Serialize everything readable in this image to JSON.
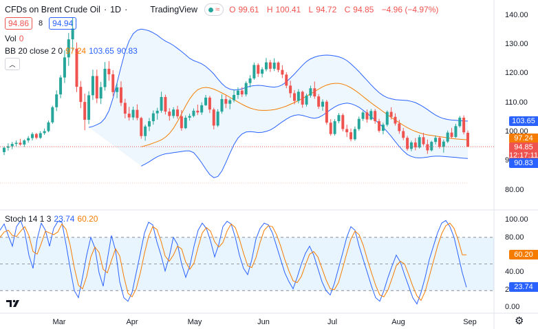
{
  "header": {
    "title": "CFDs on Brent Crude Oil",
    "interval": "1D",
    "brand": "TradingView",
    "ohlc": {
      "o_label": "O",
      "o": "99.61",
      "h_label": "H",
      "h": "100.41",
      "l_label": "L",
      "l": "94.72",
      "c_label": "C",
      "c": "94.85",
      "change": "−4.96 (−4.97%)"
    }
  },
  "trade": {
    "sell": "94.86",
    "spread": "8",
    "buy": "94.94"
  },
  "indicators": {
    "vol": {
      "label": "Vol",
      "value": "0"
    },
    "bb": {
      "label": "BB 20 close 2 0",
      "basis": "97.24",
      "upper": "103.65",
      "lower": "90.83"
    },
    "stoch": {
      "label": "Stoch 14 1 3",
      "k": "23.74",
      "d": "60.20"
    }
  },
  "price_axis": {
    "ticks": [
      "140.00",
      "130.00",
      "120.00",
      "110.00",
      "100.00",
      "90.00",
      "80.00"
    ],
    "labels": {
      "upper": "103.65",
      "basis": "97.24",
      "last": "94.85",
      "countdown": "12:17:11",
      "lower": "90.83"
    }
  },
  "stoch_axis": {
    "ticks": [
      "100.00",
      "80.00",
      "40.00",
      "20.00",
      "0.00"
    ],
    "labels": {
      "d": "60.20",
      "k": "23.74"
    }
  },
  "time_axis": [
    "Mar",
    "Apr",
    "May",
    "Jun",
    "Jul",
    "Aug",
    "Sep"
  ],
  "colors": {
    "up": "#26a69a",
    "down": "#ef5350",
    "bb_band": "#2962ff",
    "bb_basis": "#f57c00",
    "stoch_k": "#2962ff",
    "stoch_d": "#f57c00",
    "grid": "#f0f3fa"
  },
  "chart_data": {
    "type": "candlestick",
    "candles": [
      [
        93,
        95,
        92,
        94.5
      ],
      [
        94.5,
        96,
        93.5,
        95
      ],
      [
        95,
        96.5,
        94,
        95.8
      ],
      [
        95.8,
        97,
        95,
        96.2
      ],
      [
        96.2,
        97.5,
        95.2,
        95.6
      ],
      [
        95.6,
        97.4,
        94.8,
        97
      ],
      [
        97,
        98.5,
        96.2,
        97.8
      ],
      [
        97.8,
        99.8,
        97,
        99.2
      ],
      [
        99.2,
        99.6,
        97.4,
        97.9
      ],
      [
        97.9,
        100.2,
        97.5,
        99.5
      ],
      [
        99.5,
        101.1,
        98.9,
        100.2
      ],
      [
        100.2,
        103.8,
        99.8,
        103.2
      ],
      [
        103.2,
        108.9,
        102.7,
        108.4
      ],
      [
        108.4,
        114.2,
        107.1,
        112.8
      ],
      [
        112.8,
        119.4,
        111.5,
        118.6
      ],
      [
        118.6,
        127.9,
        116.7,
        125.5
      ],
      [
        125.5,
        133.9,
        122.6,
        131.7
      ],
      [
        131.7,
        139.1,
        127.7,
        135.4
      ],
      [
        128.5,
        130.6,
        113.6,
        115.4
      ],
      [
        115.4,
        117.4,
        108.1,
        110.2
      ],
      [
        110.2,
        113.1,
        100.5,
        104.1
      ],
      [
        104.1,
        113.9,
        102.6,
        112.5
      ],
      [
        112.5,
        121.3,
        110.9,
        119.1
      ],
      [
        119.1,
        121.3,
        109.8,
        111.4
      ],
      [
        111.4,
        117.1,
        109.5,
        115.3
      ],
      [
        115.3,
        123.9,
        114.1,
        121.6
      ],
      [
        121.6,
        124.2,
        117.5,
        119.7
      ],
      [
        119.7,
        121.1,
        112.2,
        113.6
      ],
      [
        113.6,
        116.7,
        111.5,
        115.2
      ],
      [
        115.2,
        117.3,
        108.8,
        109.9
      ],
      [
        109.9,
        111.3,
        104.6,
        106.2
      ],
      [
        106.2,
        108.5,
        103.8,
        104.9
      ],
      [
        104.9,
        108.6,
        104.0,
        107.5
      ],
      [
        107.5,
        109.4,
        103.9,
        104.7
      ],
      [
        104.7,
        105.1,
        97.6,
        98.5
      ],
      [
        98.5,
        102.4,
        96.9,
        101.8
      ],
      [
        101.8,
        104.7,
        100.2,
        103.6
      ],
      [
        103.6,
        107.3,
        102.4,
        106.3
      ],
      [
        106.3,
        108.2,
        104.1,
        107.2
      ],
      [
        107.2,
        113.7,
        106.5,
        111.9
      ],
      [
        111.9,
        112.7,
        105.9,
        106.9
      ],
      [
        106.9,
        108.1,
        103.8,
        105.4
      ],
      [
        105.4,
        108.4,
        104.6,
        107.6
      ],
      [
        107.6,
        108.9,
        104.4,
        105.3
      ],
      [
        105.3,
        107.4,
        100.3,
        101.2
      ],
      [
        101.2,
        105.6,
        100.9,
        104.8
      ],
      [
        104.8,
        106.2,
        103.8,
        105.4
      ],
      [
        105.4,
        108.0,
        104.9,
        107.2
      ],
      [
        107.2,
        109.3,
        105.7,
        106.6
      ],
      [
        106.6,
        110.1,
        105.8,
        109.1
      ],
      [
        109.1,
        112.6,
        108.8,
        111.7
      ],
      [
        111.7,
        112.3,
        106.4,
        107.6
      ],
      [
        107.6,
        108.2,
        100.8,
        102.1
      ],
      [
        102.1,
        107.7,
        101.6,
        106.9
      ],
      [
        106.9,
        112.8,
        106.2,
        111.2
      ],
      [
        111.2,
        112.4,
        108.1,
        109.6
      ],
      [
        109.6,
        111.4,
        107.7,
        110.8
      ],
      [
        110.8,
        114.5,
        110.1,
        112.6
      ],
      [
        112.6,
        115.2,
        111.3,
        114.1
      ],
      [
        114.1,
        115.3,
        111.9,
        112.8
      ],
      [
        112.8,
        117.3,
        112.1,
        116.7
      ],
      [
        116.7,
        119.4,
        115.2,
        118.3
      ],
      [
        118.3,
        123.7,
        117.8,
        122.9
      ],
      [
        122.9,
        123.5,
        118.8,
        119.9
      ],
      [
        119.9,
        122.1,
        118.6,
        121.4
      ],
      [
        121.4,
        125.3,
        120.7,
        123.8
      ],
      [
        123.8,
        124.6,
        120.5,
        121.6
      ],
      [
        121.6,
        125.2,
        120.8,
        123.7
      ],
      [
        123.7,
        124.1,
        120.4,
        121.2
      ],
      [
        121.2,
        122.8,
        118.4,
        119.6
      ],
      [
        119.6,
        120.4,
        114.9,
        115.8
      ],
      [
        115.8,
        117.5,
        111.7,
        113.2
      ],
      [
        113.2,
        114.3,
        109.4,
        110.6
      ],
      [
        110.6,
        114.6,
        109.7,
        113.7
      ],
      [
        113.7,
        114.1,
        108.2,
        109.3
      ],
      [
        109.3,
        113.1,
        108.6,
        112.4
      ],
      [
        112.4,
        115.8,
        111.7,
        114.9
      ],
      [
        114.9,
        117.2,
        111.3,
        112.1
      ],
      [
        112.1,
        112.9,
        107.8,
        108.6
      ],
      [
        108.6,
        111.1,
        107.2,
        110.3
      ],
      [
        110.3,
        110.9,
        102.4,
        103.1
      ],
      [
        103.1,
        104.3,
        98.6,
        99.2
      ],
      [
        99.2,
        104.3,
        98.7,
        103.6
      ],
      [
        103.6,
        106.4,
        102.9,
        105.7
      ],
      [
        105.7,
        106.3,
        100.1,
        100.9
      ],
      [
        100.9,
        102.4,
        98.2,
        99.8
      ],
      [
        99.8,
        101.1,
        96.7,
        97.4
      ],
      [
        97.4,
        101.8,
        96.9,
        100.9
      ],
      [
        100.9,
        105.2,
        100.3,
        104.4
      ],
      [
        104.4,
        107.1,
        103.7,
        106.6
      ],
      [
        106.6,
        107.6,
        103.1,
        104.2
      ],
      [
        104.2,
        107.8,
        103.9,
        107.1
      ],
      [
        107.1,
        107.8,
        102.7,
        103.6
      ],
      [
        103.6,
        104.4,
        99.7,
        100.3
      ],
      [
        100.3,
        103.1,
        99.1,
        102.4
      ],
      [
        102.4,
        107.3,
        101.8,
        106.8
      ],
      [
        106.8,
        108.4,
        104.2,
        105.1
      ],
      [
        105.1,
        106.3,
        102.1,
        102.8
      ],
      [
        102.8,
        104.1,
        99.3,
        100.2
      ],
      [
        100.2,
        101.3,
        97.1,
        97.9
      ],
      [
        97.9,
        98.6,
        93.5,
        94.1
      ],
      [
        94.1,
        96.9,
        93.3,
        96.3
      ],
      [
        96.3,
        97.8,
        93.6,
        94.6
      ],
      [
        94.6,
        98.9,
        94.2,
        98.1
      ],
      [
        98.1,
        99.6,
        95.2,
        95.7
      ],
      [
        95.7,
        97.3,
        92.4,
        93.6
      ],
      [
        93.6,
        96.9,
        93.2,
        96.5
      ],
      [
        96.5,
        98.7,
        95.6,
        97.9
      ],
      [
        97.9,
        98.4,
        94.2,
        94.8
      ],
      [
        94.8,
        97.3,
        92.8,
        96.6
      ],
      [
        96.6,
        100.4,
        96.1,
        99.7
      ],
      [
        99.7,
        101.3,
        97.6,
        98.2
      ],
      [
        98.2,
        102.7,
        97.8,
        101.9
      ],
      [
        101.9,
        105.4,
        101.4,
        104.8
      ],
      [
        104.8,
        105.6,
        99.1,
        99.8
      ],
      [
        99.61,
        100.41,
        94.72,
        94.85
      ]
    ],
    "bb_upper": [
      101.5,
      101.8,
      102.4,
      103.1,
      104.6,
      107.2,
      111.5,
      116.8,
      122.3,
      127.4,
      131.2,
      133.6,
      134.8,
      135.2,
      135.0,
      134.6,
      133.9,
      133.1,
      132.0,
      131.1,
      130.4,
      129.6,
      128.6,
      127.5,
      126.4,
      125.2,
      124.4,
      123.9,
      123.3,
      122.4,
      121.2,
      119.8,
      118.1,
      116.5,
      115.3,
      114.6,
      114.3,
      114.4,
      114.7,
      115.2,
      115.6,
      115.8,
      115.9,
      115.8,
      115.6,
      115.4,
      115.3,
      115.5,
      116.1,
      117.1,
      118.4,
      119.8,
      121.3,
      122.8,
      124.1,
      125.0,
      125.6,
      126.0,
      126.2,
      126.3,
      126.2,
      126.0,
      125.7,
      125.2,
      124.4,
      123.3,
      122.0,
      120.6,
      119.1,
      117.6,
      116.1,
      114.7,
      113.4,
      112.4,
      111.7,
      111.3,
      111.0,
      110.9,
      110.8,
      110.7,
      110.4,
      110.0,
      109.3,
      108.5,
      107.6,
      106.6,
      105.7,
      105.0,
      104.5,
      104.2,
      104.0,
      103.9,
      103.8,
      103.7,
      103.65
    ],
    "bb_lower": [
      88.2,
      88.9,
      89.7,
      90.6,
      91.4,
      92.0,
      92.4,
      92.6,
      92.8,
      93.0,
      93.2,
      93.4,
      93.4,
      92.8,
      91.2,
      89.3,
      87.2,
      85.3,
      84.2,
      84.6,
      86.5,
      89.4,
      92.6,
      95.6,
      97.8,
      99.2,
      99.9,
      100.0,
      99.9,
      99.7,
      99.8,
      100.1,
      100.6,
      101.4,
      102.4,
      103.4,
      104.3,
      105.1,
      105.6,
      105.8,
      105.6,
      105.2,
      104.8,
      104.6,
      104.9,
      105.6,
      106.6,
      107.6,
      108.5,
      109.2,
      109.6,
      109.8,
      109.6,
      109.1,
      108.4,
      107.4,
      106.3,
      105.2,
      104.0,
      102.8,
      101.5,
      100.0,
      98.4,
      96.6,
      94.9,
      93.4,
      92.2,
      91.5,
      91.1,
      91.0,
      91.1,
      91.3,
      91.5,
      91.6,
      91.6,
      91.5,
      91.4,
      91.3,
      91.2,
      91.0,
      90.9,
      90.83
    ],
    "bb_basis": [
      94.8,
      95.2,
      95.6,
      96.1,
      96.6,
      97.2,
      98.1,
      99.4,
      101.2,
      103.5,
      106.1,
      108.8,
      111.2,
      113.1,
      114.4,
      115.0,
      115.2,
      115.0,
      114.6,
      114.0,
      113.3,
      112.6,
      111.8,
      111.0,
      110.2,
      109.4,
      108.7,
      108.1,
      107.7,
      107.4,
      107.3,
      107.3,
      107.4,
      107.6,
      107.9,
      108.3,
      108.8,
      109.4,
      110.0,
      110.7,
      111.4,
      112.2,
      113.0,
      113.8,
      114.6,
      115.4,
      116.0,
      116.4,
      116.6,
      116.6,
      116.3,
      115.8,
      115.1,
      114.2,
      113.2,
      112.1,
      111.0,
      109.9,
      108.9,
      107.9,
      106.9,
      105.9,
      104.9,
      104.0,
      103.1,
      102.2,
      101.4,
      100.7,
      100.1,
      99.6,
      99.2,
      98.9,
      98.7,
      98.5,
      98.3,
      98.1,
      97.9,
      97.7,
      97.5,
      97.4,
      97.3,
      97.24
    ],
    "stoch_k": [
      88,
      95,
      82,
      70,
      92,
      99,
      86,
      60,
      45,
      78,
      96,
      88,
      70,
      90,
      98,
      97,
      72,
      45,
      20,
      12,
      35,
      60,
      80,
      68,
      40,
      25,
      55,
      82,
      65,
      30,
      12,
      8,
      18,
      40,
      62,
      85,
      97,
      94,
      75,
      60,
      42,
      58,
      80,
      72,
      50,
      35,
      48,
      70,
      88,
      96,
      90,
      76,
      58,
      72,
      92,
      98,
      95,
      80,
      60,
      45,
      38,
      55,
      78,
      90,
      96,
      94,
      85,
      70,
      55,
      40,
      30,
      22,
      35,
      50,
      62,
      70,
      60,
      45,
      30,
      20,
      15,
      28,
      45,
      62,
      80,
      92,
      88,
      70,
      55,
      40,
      25,
      12,
      8,
      20,
      35,
      48,
      60,
      52,
      38,
      25,
      12,
      5,
      18,
      35,
      55,
      70,
      85,
      96,
      99,
      92,
      80,
      60,
      40,
      23.74
    ],
    "stoch_d": [
      80,
      86,
      88,
      82,
      81,
      87,
      92,
      82,
      64,
      61,
      73,
      87,
      85,
      83,
      86,
      95,
      89,
      71,
      46,
      26,
      22,
      36,
      58,
      69,
      63,
      44,
      40,
      54,
      67,
      59,
      36,
      17,
      13,
      22,
      40,
      62,
      81,
      92,
      89,
      76,
      59,
      53,
      60,
      70,
      67,
      52,
      44,
      51,
      69,
      85,
      91,
      87,
      75,
      69,
      74,
      87,
      95,
      91,
      78,
      62,
      48,
      46,
      57,
      74,
      88,
      93,
      92,
      83,
      70,
      55,
      42,
      31,
      29,
      36,
      49,
      61,
      64,
      58,
      45,
      32,
      22,
      21,
      29,
      45,
      62,
      78,
      87,
      83,
      71,
      55,
      40,
      26,
      15,
      13,
      21,
      34,
      48,
      53,
      50,
      38,
      25,
      14,
      9,
      19,
      36,
      53,
      70,
      84,
      93,
      96,
      90,
      77,
      60.2,
      60.2
    ]
  }
}
